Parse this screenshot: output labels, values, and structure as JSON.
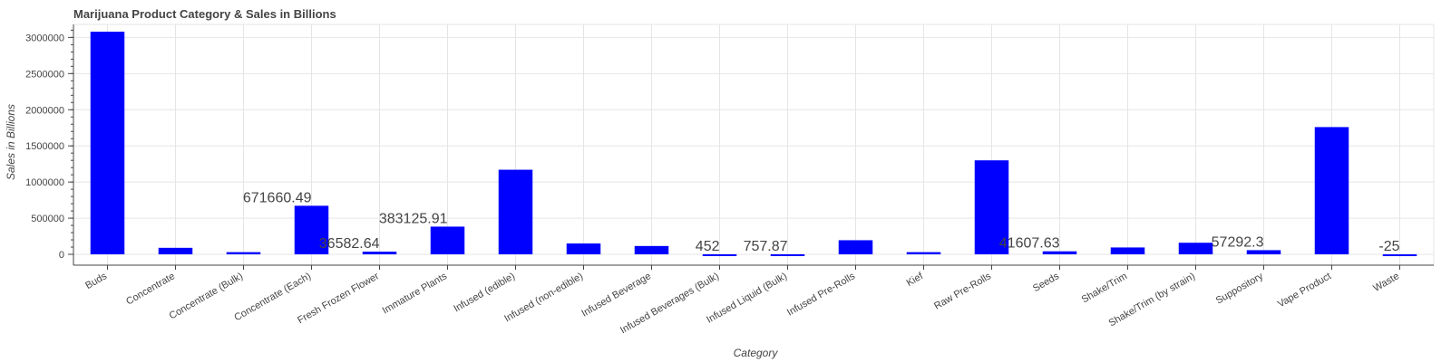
{
  "chart_data": {
    "type": "bar",
    "title": "Marijuana Product Category & Sales in Billions",
    "xlabel": "Category",
    "ylabel": "Sales in Billions",
    "ylim": [
      -150000,
      3180000
    ],
    "yticks": [
      0,
      500000,
      1000000,
      1500000,
      2000000,
      2500000,
      3000000
    ],
    "ytick_labels": [
      "0",
      "500000",
      "1000000",
      "1500000",
      "2000000",
      "2500000",
      "3000000"
    ],
    "grid": true,
    "bar_color": "#0000ff",
    "categories": [
      "Buds",
      "Concentrate",
      "Concentrate (Bulk)",
      "Concentrate (Each)",
      "Fresh Frozen Flower",
      "Immature Plants",
      "Infused (edible)",
      "Infused (non-edible)",
      "Infused Beverage",
      "Infused Beverages (Bulk)",
      "Infused Liquid (Bulk)",
      "Infused Pre-Rolls",
      "Kief",
      "Raw Pre-Rolls",
      "Seeds",
      "Shake/Trim",
      "Shake/Trim (by strain)",
      "Suppository",
      "Vape Product",
      "Waste"
    ],
    "values": [
      3080000,
      90000,
      30000,
      671660.49,
      36582.64,
      383125.91,
      1170000,
      150000,
      115000,
      452,
      757.87,
      195000,
      30000,
      1300000,
      41607.63,
      95000,
      160000,
      57292.3,
      1760000,
      -25
    ],
    "annotations": [
      {
        "category": "Concentrate (Each)",
        "text": "671660.49"
      },
      {
        "category": "Fresh Frozen Flower",
        "text": "36582.64"
      },
      {
        "category": "Immature Plants",
        "text": "383125.91"
      },
      {
        "category": "Infused Beverages (Bulk)",
        "text": "452"
      },
      {
        "category": "Infused Liquid (Bulk)",
        "text": "757.87"
      },
      {
        "category": "Seeds",
        "text": "41607.63"
      },
      {
        "category": "Suppository",
        "text": "57292.3"
      },
      {
        "category": "Waste",
        "text": "-25"
      }
    ]
  }
}
